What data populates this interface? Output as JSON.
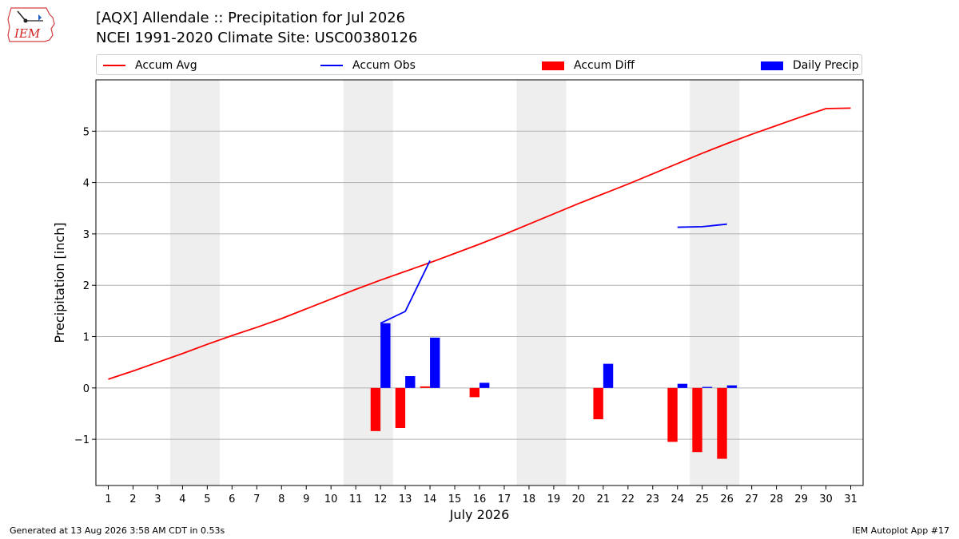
{
  "header": {
    "logo_text": "IEM",
    "title_line1": "[AQX] Allendale :: Precipitation for Jul 2026",
    "title_line2": "NCEI 1991-2020 Climate Site: USC00380126"
  },
  "footer": {
    "left": "Generated at 13 Aug 2026 3:58 AM CDT in 0.53s",
    "right": "IEM Autoplot App #17"
  },
  "colors": {
    "accum_avg": "#ff0000",
    "accum_obs": "#0000ff",
    "accum_diff": "#ff0000",
    "daily_precip": "#0000ff",
    "weekend_shade": "#eeeeee",
    "grid": "#b0b0b0"
  },
  "chart_data": {
    "type": "bar",
    "xlabel": "July 2026",
    "ylabel": "Precipitation [inch]",
    "xlim": [
      0.5,
      31.5
    ],
    "ylim": [
      -1.9,
      6.0
    ],
    "x_ticks": [
      1,
      2,
      3,
      4,
      5,
      6,
      7,
      8,
      9,
      10,
      11,
      12,
      13,
      14,
      15,
      16,
      17,
      18,
      19,
      20,
      21,
      22,
      23,
      24,
      25,
      26,
      27,
      28,
      29,
      30,
      31
    ],
    "y_ticks": [
      -1,
      0,
      1,
      2,
      3,
      4,
      5
    ],
    "y_tick_labels": [
      "−1",
      "0",
      "1",
      "2",
      "3",
      "4",
      "5"
    ],
    "grid": "horizontal",
    "legend_position": "top",
    "legend": [
      "Accum Avg",
      "Accum Obs",
      "Accum Diff",
      "Daily Precip"
    ],
    "shaded_weekends": [
      [
        3.5,
        5.5
      ],
      [
        10.5,
        12.5
      ],
      [
        17.5,
        19.5
      ],
      [
        24.5,
        26.5
      ]
    ],
    "series": [
      {
        "name": "Accum Avg",
        "kind": "line",
        "x": [
          1,
          2,
          3,
          4,
          5,
          6,
          7,
          8,
          9,
          10,
          11,
          12,
          13,
          14,
          15,
          16,
          17,
          18,
          19,
          20,
          21,
          22,
          23,
          24,
          25,
          26,
          27,
          28,
          29,
          30,
          31
        ],
        "values": [
          0.17,
          0.33,
          0.5,
          0.67,
          0.85,
          1.02,
          1.18,
          1.35,
          1.54,
          1.73,
          1.92,
          2.1,
          2.27,
          2.44,
          2.62,
          2.8,
          2.99,
          3.19,
          3.39,
          3.59,
          3.78,
          3.97,
          4.17,
          4.37,
          4.57,
          4.76,
          4.94,
          5.11,
          5.28,
          5.44,
          5.45
        ]
      },
      {
        "name": "Accum Obs",
        "kind": "line",
        "segments": [
          {
            "x": [
              12,
              13,
              14
            ],
            "values": [
              1.26,
              1.49,
              2.48
            ]
          },
          {
            "x": [
              24,
              25,
              26
            ],
            "values": [
              3.13,
              3.14,
              3.19
            ]
          }
        ]
      },
      {
        "name": "Accum Diff",
        "kind": "bar",
        "x": [
          12,
          13,
          14,
          16,
          21,
          24,
          25,
          26
        ],
        "values": [
          -0.84,
          -0.78,
          0.03,
          -0.18,
          -0.61,
          -1.05,
          -1.25,
          -1.38
        ]
      },
      {
        "name": "Daily Precip",
        "kind": "bar",
        "x": [
          12,
          13,
          14,
          16,
          21,
          24,
          25,
          26
        ],
        "values": [
          1.26,
          0.23,
          0.98,
          0.1,
          0.47,
          0.08,
          0.02,
          0.05
        ]
      }
    ]
  }
}
